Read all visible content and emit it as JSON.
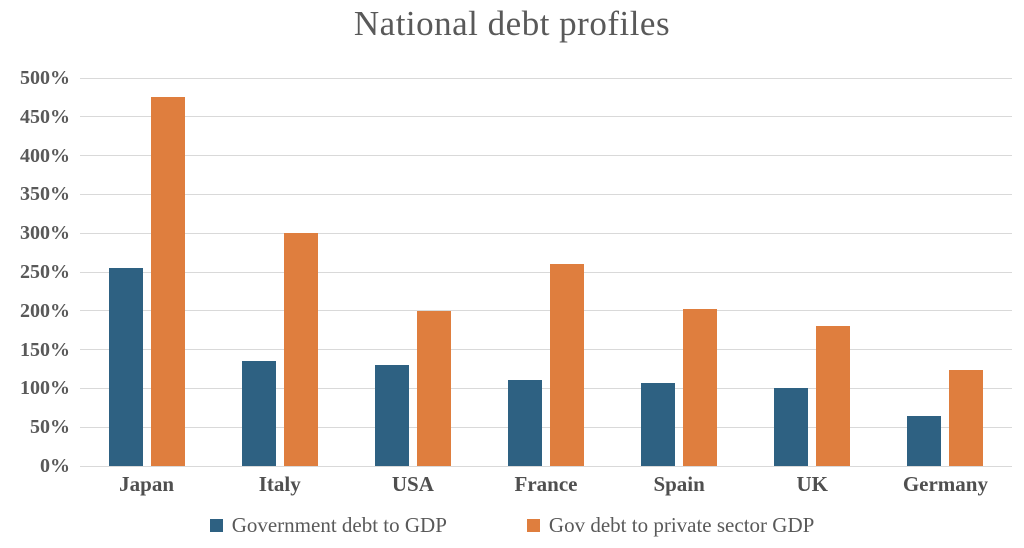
{
  "chart_data": {
    "type": "bar",
    "title": "National debt profiles",
    "categories": [
      "Japan",
      "Italy",
      "USA",
      "France",
      "Spain",
      "UK",
      "Germany"
    ],
    "series": [
      {
        "name": "Government debt to GDP",
        "color": "#2E6182",
        "values": [
          255,
          135,
          130,
          111,
          107,
          100,
          64
        ]
      },
      {
        "name": "Gov debt to private sector GDP",
        "color": "#DF7E3E",
        "values": [
          475,
          300,
          200,
          260,
          202,
          180,
          124
        ]
      }
    ],
    "ylim": [
      0,
      500
    ],
    "ytick_step": 50,
    "ytick_labels": [
      "0%",
      "50%",
      "100%",
      "150%",
      "200%",
      "250%",
      "300%",
      "350%",
      "400%",
      "450%",
      "500%"
    ],
    "xlabel": "",
    "ylabel": "",
    "grid": "horizontal",
    "gridline_color": "#D9D9D9",
    "legend_position": "bottom",
    "text_color": "#595959"
  }
}
